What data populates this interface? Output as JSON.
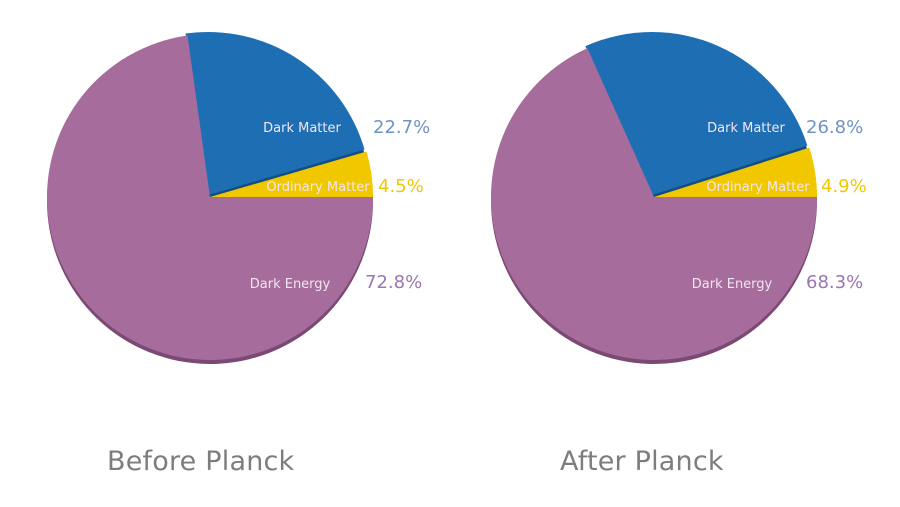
{
  "colors": {
    "dark_energy": "#a66c9c",
    "dark_energy_shadow": "#7b4a74",
    "dark_matter": "#1e6eb4",
    "dark_matter_shadow": "#134d82",
    "ordinary_matter": "#f1c800",
    "ordinary_matter_shadow": "#9a7a10",
    "pct_dark_matter": "#6f93c5",
    "pct_ordinary_matter": "#f1c800",
    "pct_dark_energy": "#9a76b0",
    "title": "#7d7d7d"
  },
  "charts": [
    {
      "title": "Before Planck",
      "slices": [
        {
          "label": "Ordinary Matter",
          "value": 4.5,
          "pct": "4.5%"
        },
        {
          "label": "Dark Matter",
          "value": 22.7,
          "pct": "22.7%"
        },
        {
          "label": "Dark Energy",
          "value": 72.8,
          "pct": "72.8%"
        }
      ]
    },
    {
      "title": "After Planck",
      "slices": [
        {
          "label": "Ordinary Matter",
          "value": 4.9,
          "pct": "4.9%"
        },
        {
          "label": "Dark Matter",
          "value": 26.8,
          "pct": "26.8%"
        },
        {
          "label": "Dark Energy",
          "value": 68.3,
          "pct": "68.3%"
        }
      ]
    }
  ],
  "chart_data": [
    {
      "type": "pie",
      "title": "Before Planck",
      "categories": [
        "Ordinary Matter",
        "Dark Matter",
        "Dark Energy"
      ],
      "values": [
        4.5,
        22.7,
        72.8
      ],
      "unit": "%",
      "colors": [
        "#f1c800",
        "#1e6eb4",
        "#a66c9c"
      ]
    },
    {
      "type": "pie",
      "title": "After Planck",
      "categories": [
        "Ordinary Matter",
        "Dark Matter",
        "Dark Energy"
      ],
      "values": [
        4.9,
        26.8,
        68.3
      ],
      "unit": "%",
      "colors": [
        "#f1c800",
        "#1e6eb4",
        "#a66c9c"
      ]
    }
  ]
}
